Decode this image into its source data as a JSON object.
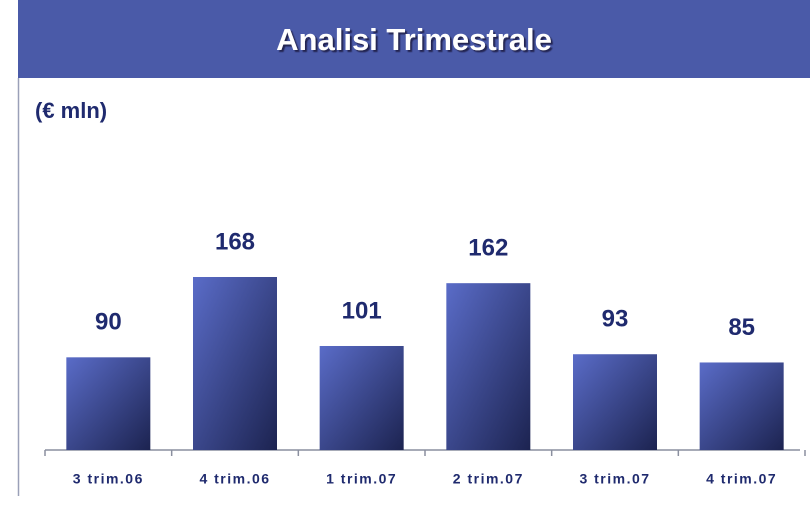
{
  "chart_data": {
    "type": "bar",
    "title": "Analisi Trimestrale",
    "subtitle": "(€ mln)",
    "categories": [
      "3 trim.06",
      "4 trim.06",
      "1 trim.07",
      "2 trim.07",
      "3 trim.07",
      "4 trim.07"
    ],
    "values": [
      90,
      168,
      101,
      162,
      93,
      85
    ],
    "color": "#4a5aa8"
  }
}
